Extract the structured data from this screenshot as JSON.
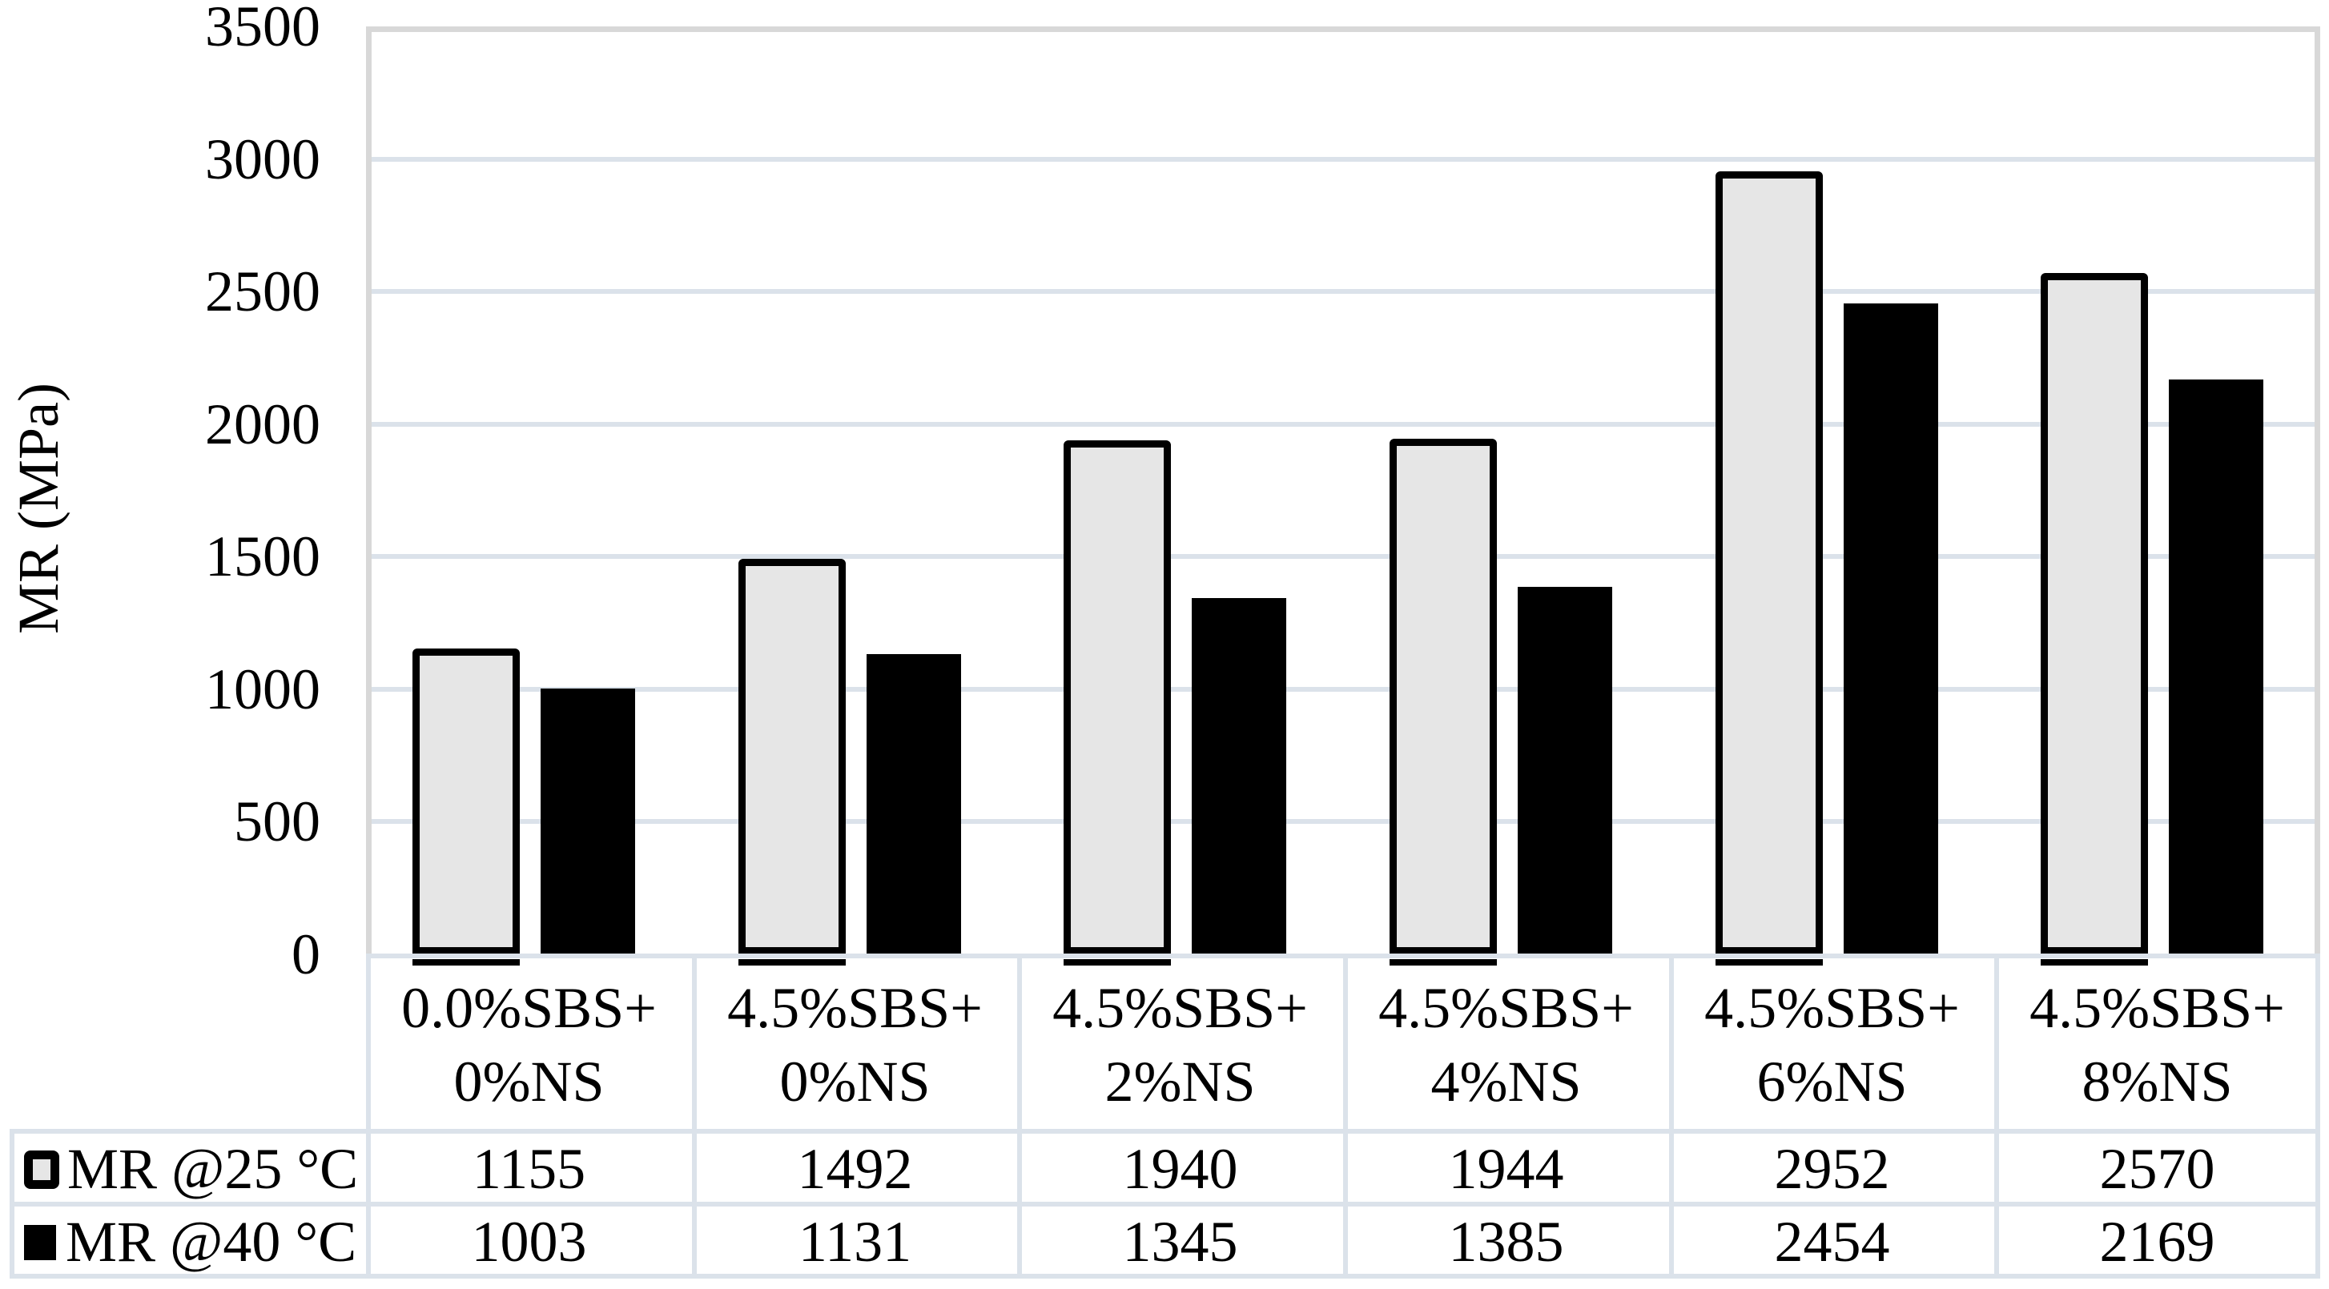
{
  "chart_data": {
    "type": "bar",
    "title": "",
    "ylabel": "MR (MPa)",
    "xlabel": "",
    "ylim": [
      0,
      3500
    ],
    "yticks": [
      0,
      500,
      1000,
      1500,
      2000,
      2500,
      3000,
      3500
    ],
    "grid": "horizontal gridlines every 500",
    "legend_position": "first column of data table below chart",
    "categories": [
      "0.0%SBS+\n0%NS",
      "4.5%SBS+\n0%NS",
      "4.5%SBS+\n2%NS",
      "4.5%SBS+\n4%NS",
      "4.5%SBS+\n6%NS",
      "4.5%SBS+\n8%NS"
    ],
    "series": [
      {
        "name": "MR @25 °C",
        "values": [
          1155,
          1492,
          1940,
          1944,
          2952,
          2570
        ],
        "fill": "#e6e6e6",
        "border": "#000000",
        "style": "outlined"
      },
      {
        "name": "MR @40 °C",
        "values": [
          1003,
          1131,
          1345,
          1385,
          2454,
          2169
        ],
        "fill": "#000000",
        "border": "#000000",
        "style": "solid"
      }
    ]
  },
  "colors": {
    "background": "#ffffff",
    "gridline": "#dbe2ea",
    "axis_border": "#d8d8d8",
    "table_border": "#dbe2ea",
    "text": "#000000"
  }
}
